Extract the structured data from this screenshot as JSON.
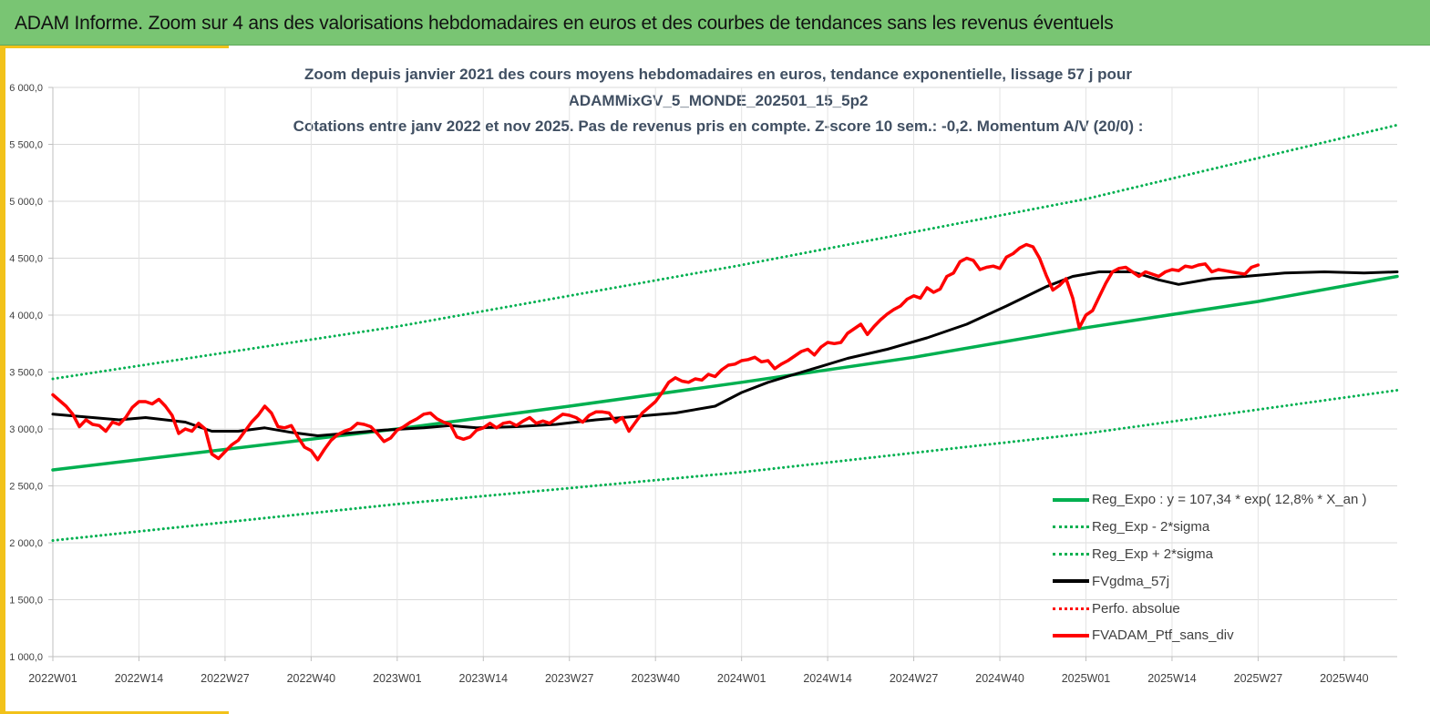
{
  "banner": {
    "title": "ADAM Informe. Zoom sur 4 ans des valorisations hebdomadaires en euros et des courbes de tendances sans les revenus éventuels"
  },
  "colors": {
    "banner_bg": "#79c573",
    "frame": "#f2c21a",
    "trend": "#00b050",
    "smooth": "#000000",
    "portfolio": "#ff0000",
    "title_text": "#404f62"
  },
  "chart_data": {
    "type": "line",
    "title_lines": [
      "Zoom depuis janvier 2021 des cours moyens hebdomadaires  en euros, tendance exponentielle, lissage 57 j pour",
      "ADAMMixGV_5_MONDE_202501_15_5p2",
      "Cotations entre janv 2022 et nov 2025. Pas de revenus pris en compte. Z-score 10 sem.: -0,2. Momentum A/V (20/0) :"
    ],
    "x_unit": "week index since 2022W01",
    "xlim": [
      0,
      203
    ],
    "ylim": [
      1000,
      6000
    ],
    "yticks": [
      {
        "v": 1000,
        "label": "1 000,0"
      },
      {
        "v": 1500,
        "label": "1 500,0"
      },
      {
        "v": 2000,
        "label": "2 000,0"
      },
      {
        "v": 2500,
        "label": "2 500,0"
      },
      {
        "v": 3000,
        "label": "3 000,0"
      },
      {
        "v": 3500,
        "label": "3 500,0"
      },
      {
        "v": 4000,
        "label": "4 000,0"
      },
      {
        "v": 4500,
        "label": "4 500,0"
      },
      {
        "v": 5000,
        "label": "5 000,0"
      },
      {
        "v": 5500,
        "label": "5 500,0"
      },
      {
        "v": 6000,
        "label": "6 000,0"
      }
    ],
    "xticks": [
      {
        "w": 0,
        "label": "2022W01"
      },
      {
        "w": 13,
        "label": "2022W14"
      },
      {
        "w": 26,
        "label": "2022W27"
      },
      {
        "w": 39,
        "label": "2022W40"
      },
      {
        "w": 52,
        "label": "2023W01"
      },
      {
        "w": 65,
        "label": "2023W14"
      },
      {
        "w": 78,
        "label": "2023W27"
      },
      {
        "w": 91,
        "label": "2023W40"
      },
      {
        "w": 104,
        "label": "2024W01"
      },
      {
        "w": 117,
        "label": "2024W14"
      },
      {
        "w": 130,
        "label": "2024W27"
      },
      {
        "w": 143,
        "label": "2024W40"
      },
      {
        "w": 156,
        "label": "2025W01"
      },
      {
        "w": 169,
        "label": "2025W14"
      },
      {
        "w": 182,
        "label": "2025W27"
      },
      {
        "w": 195,
        "label": "2025W40"
      }
    ],
    "grid": true,
    "legend_position": "bottom-right",
    "series": [
      {
        "name": "Reg_Expo : y = 107,34 * exp( 12,8% *  X_an )",
        "color": "#00b050",
        "style": "solid",
        "width": 3.5,
        "points": [
          [
            0,
            2640
          ],
          [
            26,
            2820
          ],
          [
            52,
            3000
          ],
          [
            78,
            3200
          ],
          [
            104,
            3410
          ],
          [
            130,
            3630
          ],
          [
            156,
            3890
          ],
          [
            182,
            4120
          ],
          [
            203,
            4340
          ]
        ]
      },
      {
        "name": "Reg_Exp - 2*sigma",
        "color": "#00b050",
        "style": "dotted",
        "width": 3,
        "points": [
          [
            0,
            2020
          ],
          [
            52,
            2340
          ],
          [
            104,
            2620
          ],
          [
            156,
            2960
          ],
          [
            203,
            3340
          ]
        ]
      },
      {
        "name": "Reg_Exp + 2*sigma",
        "color": "#00b050",
        "style": "dotted",
        "width": 3,
        "points": [
          [
            0,
            3440
          ],
          [
            52,
            3900
          ],
          [
            104,
            4440
          ],
          [
            156,
            5020
          ],
          [
            203,
            5670
          ]
        ]
      },
      {
        "name": "FVgdma_57j",
        "color": "#000000",
        "style": "solid",
        "width": 3,
        "points": [
          [
            0,
            3130
          ],
          [
            6,
            3100
          ],
          [
            10,
            3080
          ],
          [
            14,
            3100
          ],
          [
            20,
            3060
          ],
          [
            24,
            2980
          ],
          [
            28,
            2980
          ],
          [
            32,
            3010
          ],
          [
            36,
            2970
          ],
          [
            40,
            2940
          ],
          [
            44,
            2960
          ],
          [
            50,
            2990
          ],
          [
            56,
            3010
          ],
          [
            60,
            3030
          ],
          [
            64,
            3010
          ],
          [
            70,
            3020
          ],
          [
            76,
            3040
          ],
          [
            82,
            3080
          ],
          [
            88,
            3110
          ],
          [
            94,
            3140
          ],
          [
            100,
            3200
          ],
          [
            104,
            3320
          ],
          [
            108,
            3410
          ],
          [
            112,
            3480
          ],
          [
            116,
            3550
          ],
          [
            120,
            3620
          ],
          [
            126,
            3700
          ],
          [
            132,
            3800
          ],
          [
            138,
            3920
          ],
          [
            144,
            4080
          ],
          [
            150,
            4250
          ],
          [
            154,
            4340
          ],
          [
            158,
            4380
          ],
          [
            163,
            4380
          ],
          [
            167,
            4310
          ],
          [
            170,
            4270
          ],
          [
            175,
            4320
          ],
          [
            180,
            4340
          ],
          [
            186,
            4370
          ],
          [
            192,
            4380
          ],
          [
            198,
            4370
          ],
          [
            203,
            4380
          ]
        ]
      },
      {
        "name": "Perfo. absolue",
        "color": "#ff0000",
        "style": "dotted",
        "width": 3,
        "points": []
      },
      {
        "name": "FVADAM_Ptf_sans_div",
        "color": "#ff0000",
        "style": "solid",
        "width": 3.5,
        "points": [
          [
            0,
            3300
          ],
          [
            2,
            3200
          ],
          [
            3,
            3130
          ],
          [
            4,
            3020
          ],
          [
            5,
            3080
          ],
          [
            6,
            3040
          ],
          [
            7,
            3030
          ],
          [
            8,
            2980
          ],
          [
            9,
            3060
          ],
          [
            10,
            3040
          ],
          [
            11,
            3100
          ],
          [
            12,
            3190
          ],
          [
            13,
            3240
          ],
          [
            14,
            3240
          ],
          [
            15,
            3220
          ],
          [
            16,
            3260
          ],
          [
            17,
            3200
          ],
          [
            18,
            3120
          ],
          [
            19,
            2960
          ],
          [
            20,
            3000
          ],
          [
            21,
            2980
          ],
          [
            22,
            3050
          ],
          [
            23,
            3000
          ],
          [
            24,
            2780
          ],
          [
            25,
            2740
          ],
          [
            26,
            2800
          ],
          [
            27,
            2860
          ],
          [
            28,
            2900
          ],
          [
            29,
            2980
          ],
          [
            30,
            3060
          ],
          [
            31,
            3120
          ],
          [
            32,
            3200
          ],
          [
            33,
            3140
          ],
          [
            34,
            3020
          ],
          [
            35,
            3010
          ],
          [
            36,
            3030
          ],
          [
            37,
            2930
          ],
          [
            38,
            2840
          ],
          [
            39,
            2810
          ],
          [
            40,
            2730
          ],
          [
            41,
            2820
          ],
          [
            42,
            2900
          ],
          [
            43,
            2950
          ],
          [
            44,
            2980
          ],
          [
            45,
            3000
          ],
          [
            46,
            3050
          ],
          [
            47,
            3040
          ],
          [
            48,
            3020
          ],
          [
            49,
            2960
          ],
          [
            50,
            2890
          ],
          [
            51,
            2920
          ],
          [
            52,
            2990
          ],
          [
            53,
            3020
          ],
          [
            54,
            3060
          ],
          [
            55,
            3090
          ],
          [
            56,
            3130
          ],
          [
            57,
            3140
          ],
          [
            58,
            3090
          ],
          [
            59,
            3060
          ],
          [
            60,
            3040
          ],
          [
            61,
            2930
          ],
          [
            62,
            2910
          ],
          [
            63,
            2930
          ],
          [
            64,
            2990
          ],
          [
            65,
            3010
          ],
          [
            66,
            3050
          ],
          [
            67,
            3010
          ],
          [
            68,
            3050
          ],
          [
            69,
            3060
          ],
          [
            70,
            3030
          ],
          [
            71,
            3070
          ],
          [
            72,
            3100
          ],
          [
            73,
            3050
          ],
          [
            74,
            3070
          ],
          [
            75,
            3050
          ],
          [
            76,
            3090
          ],
          [
            77,
            3130
          ],
          [
            78,
            3120
          ],
          [
            79,
            3100
          ],
          [
            80,
            3060
          ],
          [
            81,
            3120
          ],
          [
            82,
            3150
          ],
          [
            83,
            3150
          ],
          [
            84,
            3140
          ],
          [
            85,
            3060
          ],
          [
            86,
            3100
          ],
          [
            87,
            2980
          ],
          [
            88,
            3060
          ],
          [
            89,
            3140
          ],
          [
            90,
            3190
          ],
          [
            91,
            3240
          ],
          [
            92,
            3320
          ],
          [
            93,
            3410
          ],
          [
            94,
            3450
          ],
          [
            95,
            3420
          ],
          [
            96,
            3410
          ],
          [
            97,
            3440
          ],
          [
            98,
            3430
          ],
          [
            99,
            3480
          ],
          [
            100,
            3460
          ],
          [
            101,
            3520
          ],
          [
            102,
            3560
          ],
          [
            103,
            3570
          ],
          [
            104,
            3600
          ],
          [
            105,
            3610
          ],
          [
            106,
            3630
          ],
          [
            107,
            3590
          ],
          [
            108,
            3600
          ],
          [
            109,
            3530
          ],
          [
            110,
            3570
          ],
          [
            111,
            3600
          ],
          [
            112,
            3640
          ],
          [
            113,
            3680
          ],
          [
            114,
            3700
          ],
          [
            115,
            3650
          ],
          [
            116,
            3720
          ],
          [
            117,
            3760
          ],
          [
            118,
            3750
          ],
          [
            119,
            3760
          ],
          [
            120,
            3840
          ],
          [
            121,
            3880
          ],
          [
            122,
            3920
          ],
          [
            123,
            3830
          ],
          [
            124,
            3900
          ],
          [
            125,
            3960
          ],
          [
            126,
            4010
          ],
          [
            127,
            4050
          ],
          [
            128,
            4080
          ],
          [
            129,
            4140
          ],
          [
            130,
            4170
          ],
          [
            131,
            4150
          ],
          [
            132,
            4240
          ],
          [
            133,
            4200
          ],
          [
            134,
            4230
          ],
          [
            135,
            4340
          ],
          [
            136,
            4370
          ],
          [
            137,
            4470
          ],
          [
            138,
            4500
          ],
          [
            139,
            4480
          ],
          [
            140,
            4400
          ],
          [
            141,
            4420
          ],
          [
            142,
            4430
          ],
          [
            143,
            4410
          ],
          [
            144,
            4510
          ],
          [
            145,
            4540
          ],
          [
            146,
            4590
          ],
          [
            147,
            4620
          ],
          [
            148,
            4600
          ],
          [
            149,
            4500
          ],
          [
            150,
            4350
          ],
          [
            151,
            4220
          ],
          [
            152,
            4260
          ],
          [
            153,
            4320
          ],
          [
            154,
            4150
          ],
          [
            155,
            3890
          ],
          [
            156,
            4000
          ],
          [
            157,
            4040
          ],
          [
            158,
            4160
          ],
          [
            159,
            4280
          ],
          [
            160,
            4380
          ],
          [
            161,
            4410
          ],
          [
            162,
            4420
          ],
          [
            163,
            4380
          ],
          [
            164,
            4340
          ],
          [
            165,
            4380
          ],
          [
            166,
            4360
          ],
          [
            167,
            4340
          ],
          [
            168,
            4380
          ],
          [
            169,
            4400
          ],
          [
            170,
            4390
          ],
          [
            171,
            4430
          ],
          [
            172,
            4420
          ],
          [
            173,
            4440
          ],
          [
            174,
            4450
          ],
          [
            175,
            4380
          ],
          [
            176,
            4400
          ],
          [
            177,
            4390
          ],
          [
            178,
            4380
          ],
          [
            179,
            4370
          ],
          [
            180,
            4360
          ],
          [
            181,
            4420
          ],
          [
            182,
            4440
          ]
        ]
      }
    ]
  }
}
